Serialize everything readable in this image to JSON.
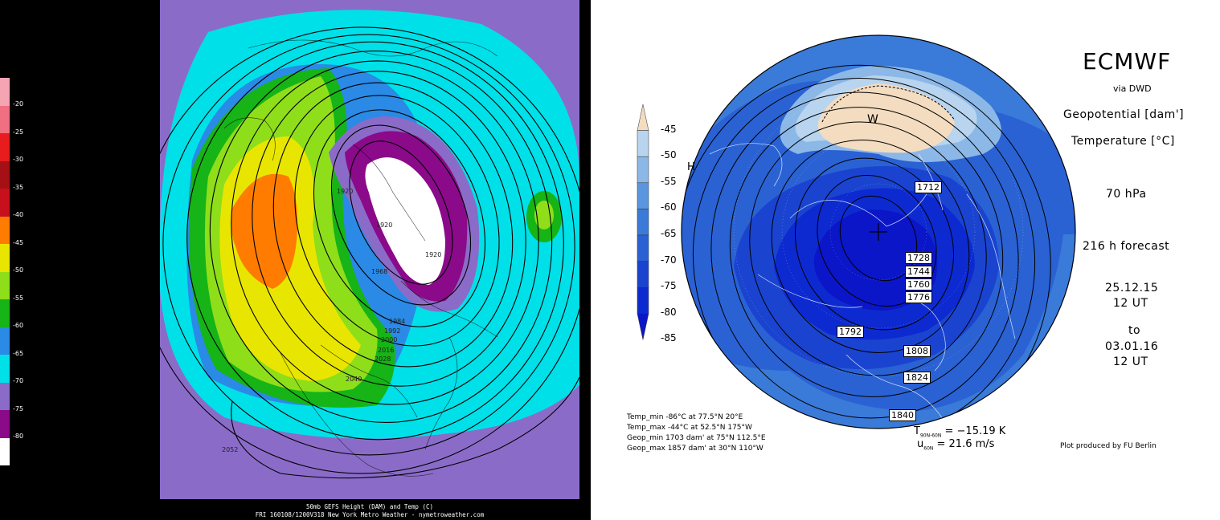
{
  "left_panel": {
    "colorbar": [
      {
        "label": "-20",
        "color": "#f5a4b4"
      },
      {
        "label": "-25",
        "color": "#f06f80"
      },
      {
        "label": "-30",
        "color": "#e81c1c"
      },
      {
        "label": "-35",
        "color": "#a50f16"
      },
      {
        "label": "-40",
        "color": "#c8101c"
      },
      {
        "label": "-45",
        "color": "#ff7c00"
      },
      {
        "label": "-50",
        "color": "#e8e600"
      },
      {
        "label": "-55",
        "color": "#8fde1a"
      },
      {
        "label": "-60",
        "color": "#16b416"
      },
      {
        "label": "-65",
        "color": "#2a8ae6"
      },
      {
        "label": "-70",
        "color": "#00e0e8"
      },
      {
        "label": "-75",
        "color": "#8a6cc8"
      },
      {
        "label": "-80",
        "color": "#8a0a8a"
      },
      {
        "label": "",
        "color": "#ffffff"
      }
    ],
    "contour_labels": [
      "1920",
      "1920",
      "1920",
      "1968",
      "1984",
      "1992",
      "2000",
      "2016",
      "2028",
      "2040",
      "2052"
    ],
    "caption_line1": "50mb GEFS Height (DAM) and Temp (C)",
    "caption_line2": "FRI 160108/1200V318 New York Metro Weather - nymetroweather.com"
  },
  "right_panel": {
    "title": "ECMWF",
    "subtitle": "via DWD",
    "line_geopotential": "Geopotential [dam']",
    "line_temperature": "Temperature [°C]",
    "level": "70 hPa",
    "forecast": "216 h forecast",
    "date_from": "25.12.15",
    "time_from": "12 UT",
    "to_word": "to",
    "date_to": "03.01.16",
    "time_to": "12 UT",
    "colorbar": [
      {
        "label": "-45",
        "color": "#f3dcc0"
      },
      {
        "label": "-50",
        "color": "#b8d4ee"
      },
      {
        "label": "-55",
        "color": "#8cb8e8"
      },
      {
        "label": "-60",
        "color": "#5a96e0"
      },
      {
        "label": "-65",
        "color": "#3a7ad8"
      },
      {
        "label": "-70",
        "color": "#2a62d4"
      },
      {
        "label": "-75",
        "color": "#1a44d0"
      },
      {
        "label": "-80",
        "color": "#0d2ad0"
      },
      {
        "label": "-85",
        "color": "#0a16c8"
      }
    ],
    "warm_marker": "W",
    "high_marker": "H",
    "contour_labels": [
      "1712",
      "1728",
      "1744",
      "1760",
      "1776",
      "1792",
      "1808",
      "1824",
      "1840"
    ],
    "stats": {
      "temp_min": "Temp_min  -86°C at 77.5°N  20°E",
      "temp_max": "Temp_max  -44°C at 52.5°N  175°W",
      "geop_min": "Geop_min  1703 dam' at 75°N  112.5°E",
      "geop_max": "Geop_max  1857 dam' at 30°N  110°W"
    },
    "index_t_symbol": "T",
    "index_t_sub": "90N-60N",
    "index_t_value": "=  −15.19 K",
    "index_u_symbol": "u",
    "index_u_sub": "60N",
    "index_u_value": "=  21.6 m/s",
    "credit": "Plot produced by FU Berlin"
  }
}
